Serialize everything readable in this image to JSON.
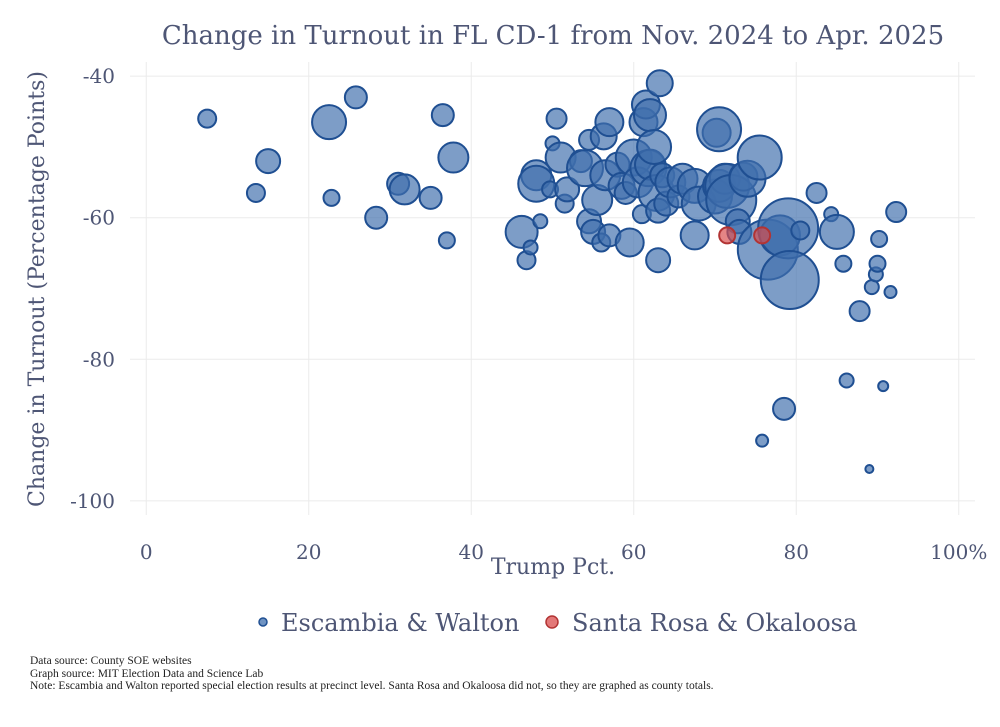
{
  "chart_data": {
    "type": "scatter",
    "title": "Change in Turnout in FL CD-1 from Nov. 2024 to Apr. 2025",
    "xlabel": "Trump Pct.",
    "ylabel": "Change in Turnout (Percentage Points)",
    "xlim": [
      -2,
      102
    ],
    "ylim": [
      -102,
      -38
    ],
    "x_ticks": [
      0,
      20,
      40,
      60,
      80,
      100
    ],
    "x_tick_labels": [
      "0",
      "20",
      "40",
      "60",
      "80",
      "100%"
    ],
    "y_ticks": [
      -100,
      -80,
      -60,
      -40
    ],
    "y_tick_labels": [
      "-100",
      "-80",
      "-60",
      "-40"
    ],
    "grid": true,
    "legend_position": "bottom",
    "series": [
      {
        "name": "Escambia & Walton",
        "color": "#3f6fad",
        "stroke": "#1f4f92",
        "points": [
          {
            "x": 7.5,
            "y": -46,
            "s": 9
          },
          {
            "x": 13.5,
            "y": -56.5,
            "s": 9
          },
          {
            "x": 15,
            "y": -52,
            "s": 12
          },
          {
            "x": 22.5,
            "y": -46.5,
            "s": 17
          },
          {
            "x": 22.8,
            "y": -57.2,
            "s": 8
          },
          {
            "x": 25.8,
            "y": -43,
            "s": 11
          },
          {
            "x": 28.3,
            "y": -60,
            "s": 11
          },
          {
            "x": 31,
            "y": -55.2,
            "s": 11
          },
          {
            "x": 31.8,
            "y": -56,
            "s": 15
          },
          {
            "x": 35,
            "y": -57.2,
            "s": 11
          },
          {
            "x": 36.5,
            "y": -45.5,
            "s": 11
          },
          {
            "x": 37,
            "y": -63.2,
            "s": 8
          },
          {
            "x": 37.8,
            "y": -51.5,
            "s": 15
          },
          {
            "x": 46.2,
            "y": -62,
            "s": 16
          },
          {
            "x": 46.8,
            "y": -66,
            "s": 9
          },
          {
            "x": 47.3,
            "y": -64.2,
            "s": 7
          },
          {
            "x": 48,
            "y": -54,
            "s": 15
          },
          {
            "x": 48,
            "y": -55.2,
            "s": 18
          },
          {
            "x": 48.5,
            "y": -60.5,
            "s": 7
          },
          {
            "x": 49.7,
            "y": -56,
            "s": 8
          },
          {
            "x": 50,
            "y": -49.5,
            "s": 7
          },
          {
            "x": 50.5,
            "y": -46,
            "s": 10
          },
          {
            "x": 51,
            "y": -51.5,
            "s": 15
          },
          {
            "x": 51.5,
            "y": -58,
            "s": 9
          },
          {
            "x": 51.8,
            "y": -56,
            "s": 12
          },
          {
            "x": 53.5,
            "y": -52,
            "s": 11
          },
          {
            "x": 54,
            "y": -53,
            "s": 18
          },
          {
            "x": 54.5,
            "y": -49,
            "s": 10
          },
          {
            "x": 54.5,
            "y": -60.5,
            "s": 12
          },
          {
            "x": 55,
            "y": -62,
            "s": 12
          },
          {
            "x": 55.5,
            "y": -57.5,
            "s": 15
          },
          {
            "x": 56,
            "y": -63.5,
            "s": 9
          },
          {
            "x": 56.3,
            "y": -48.5,
            "s": 13
          },
          {
            "x": 56.5,
            "y": -54,
            "s": 15
          },
          {
            "x": 57,
            "y": -46.5,
            "s": 14
          },
          {
            "x": 57,
            "y": -62.5,
            "s": 11
          },
          {
            "x": 58,
            "y": -52.5,
            "s": 12
          },
          {
            "x": 58.5,
            "y": -55.5,
            "s": 13
          },
          {
            "x": 59,
            "y": -56.5,
            "s": 11
          },
          {
            "x": 59.5,
            "y": -63.5,
            "s": 14
          },
          {
            "x": 60,
            "y": -51.5,
            "s": 18
          },
          {
            "x": 60.5,
            "y": -55,
            "s": 15
          },
          {
            "x": 61,
            "y": -59.5,
            "s": 9
          },
          {
            "x": 61.2,
            "y": -46.5,
            "s": 14
          },
          {
            "x": 61.5,
            "y": -44,
            "s": 14
          },
          {
            "x": 61.8,
            "y": -53,
            "s": 18
          },
          {
            "x": 62,
            "y": -45.5,
            "s": 16
          },
          {
            "x": 62,
            "y": -52.5,
            "s": 15
          },
          {
            "x": 62.5,
            "y": -50,
            "s": 17
          },
          {
            "x": 62.8,
            "y": -56.5,
            "s": 18
          },
          {
            "x": 63,
            "y": -59,
            "s": 12
          },
          {
            "x": 63,
            "y": -66,
            "s": 12
          },
          {
            "x": 63.2,
            "y": -41,
            "s": 13
          },
          {
            "x": 63.5,
            "y": -54,
            "s": 12
          },
          {
            "x": 64,
            "y": -58,
            "s": 12
          },
          {
            "x": 64.5,
            "y": -55,
            "s": 15
          },
          {
            "x": 65.5,
            "y": -57,
            "s": 11
          },
          {
            "x": 66,
            "y": -54.5,
            "s": 15
          },
          {
            "x": 67.5,
            "y": -55.5,
            "s": 17
          },
          {
            "x": 67.5,
            "y": -62.5,
            "s": 14
          },
          {
            "x": 68,
            "y": -58,
            "s": 17
          },
          {
            "x": 70,
            "y": -57,
            "s": 17
          },
          {
            "x": 70.2,
            "y": -48,
            "s": 14
          },
          {
            "x": 70.5,
            "y": -47.5,
            "s": 22
          },
          {
            "x": 70.5,
            "y": -55.5,
            "s": 16
          },
          {
            "x": 71.2,
            "y": -54.5,
            "s": 15
          },
          {
            "x": 71.5,
            "y": -55.5,
            "s": 22
          },
          {
            "x": 72,
            "y": -57.5,
            "s": 25
          },
          {
            "x": 72.8,
            "y": -60.5,
            "s": 12
          },
          {
            "x": 73,
            "y": -62,
            "s": 12
          },
          {
            "x": 73.5,
            "y": -54.2,
            "s": 14
          },
          {
            "x": 74,
            "y": -54.5,
            "s": 18
          },
          {
            "x": 75.5,
            "y": -51.5,
            "s": 22
          },
          {
            "x": 75.8,
            "y": -91.5,
            "s": 6
          },
          {
            "x": 76.5,
            "y": -64.5,
            "s": 30
          },
          {
            "x": 78,
            "y": -62.5,
            "s": 20
          },
          {
            "x": 78.5,
            "y": -87,
            "s": 11
          },
          {
            "x": 79,
            "y": -61.5,
            "s": 30
          },
          {
            "x": 79.2,
            "y": -68.8,
            "s": 29
          },
          {
            "x": 80.5,
            "y": -61.8,
            "s": 9
          },
          {
            "x": 82.5,
            "y": -56.5,
            "s": 10
          },
          {
            "x": 84.3,
            "y": -59.5,
            "s": 7
          },
          {
            "x": 85,
            "y": -62,
            "s": 17
          },
          {
            "x": 85.8,
            "y": -66.5,
            "s": 8
          },
          {
            "x": 86.2,
            "y": -83,
            "s": 7
          },
          {
            "x": 87.8,
            "y": -73.2,
            "s": 10
          },
          {
            "x": 89,
            "y": -95.5,
            "s": 4
          },
          {
            "x": 89.3,
            "y": -69.8,
            "s": 7
          },
          {
            "x": 89.8,
            "y": -68,
            "s": 7
          },
          {
            "x": 90,
            "y": -66.5,
            "s": 8
          },
          {
            "x": 90.2,
            "y": -63,
            "s": 8
          },
          {
            "x": 90.7,
            "y": -83.8,
            "s": 5
          },
          {
            "x": 91.6,
            "y": -70.5,
            "s": 6
          },
          {
            "x": 92.3,
            "y": -59.2,
            "s": 10
          }
        ]
      },
      {
        "name": "Santa Rosa & Okaloosa",
        "color": "#d94b4b",
        "stroke": "#b23434",
        "points": [
          {
            "x": 71.5,
            "y": -62.5,
            "s": 8
          },
          {
            "x": 75.8,
            "y": -62.5,
            "s": 8
          }
        ]
      }
    ]
  },
  "footer": {
    "data_source": "Data source:  County SOE websites",
    "graph_source": "Graph source:  MIT Election Data and Science Lab",
    "note": "Note:  Escambia and Walton reported special election results at precinct level. Santa Rosa and Okaloosa did not, so they are graphed as county totals."
  }
}
